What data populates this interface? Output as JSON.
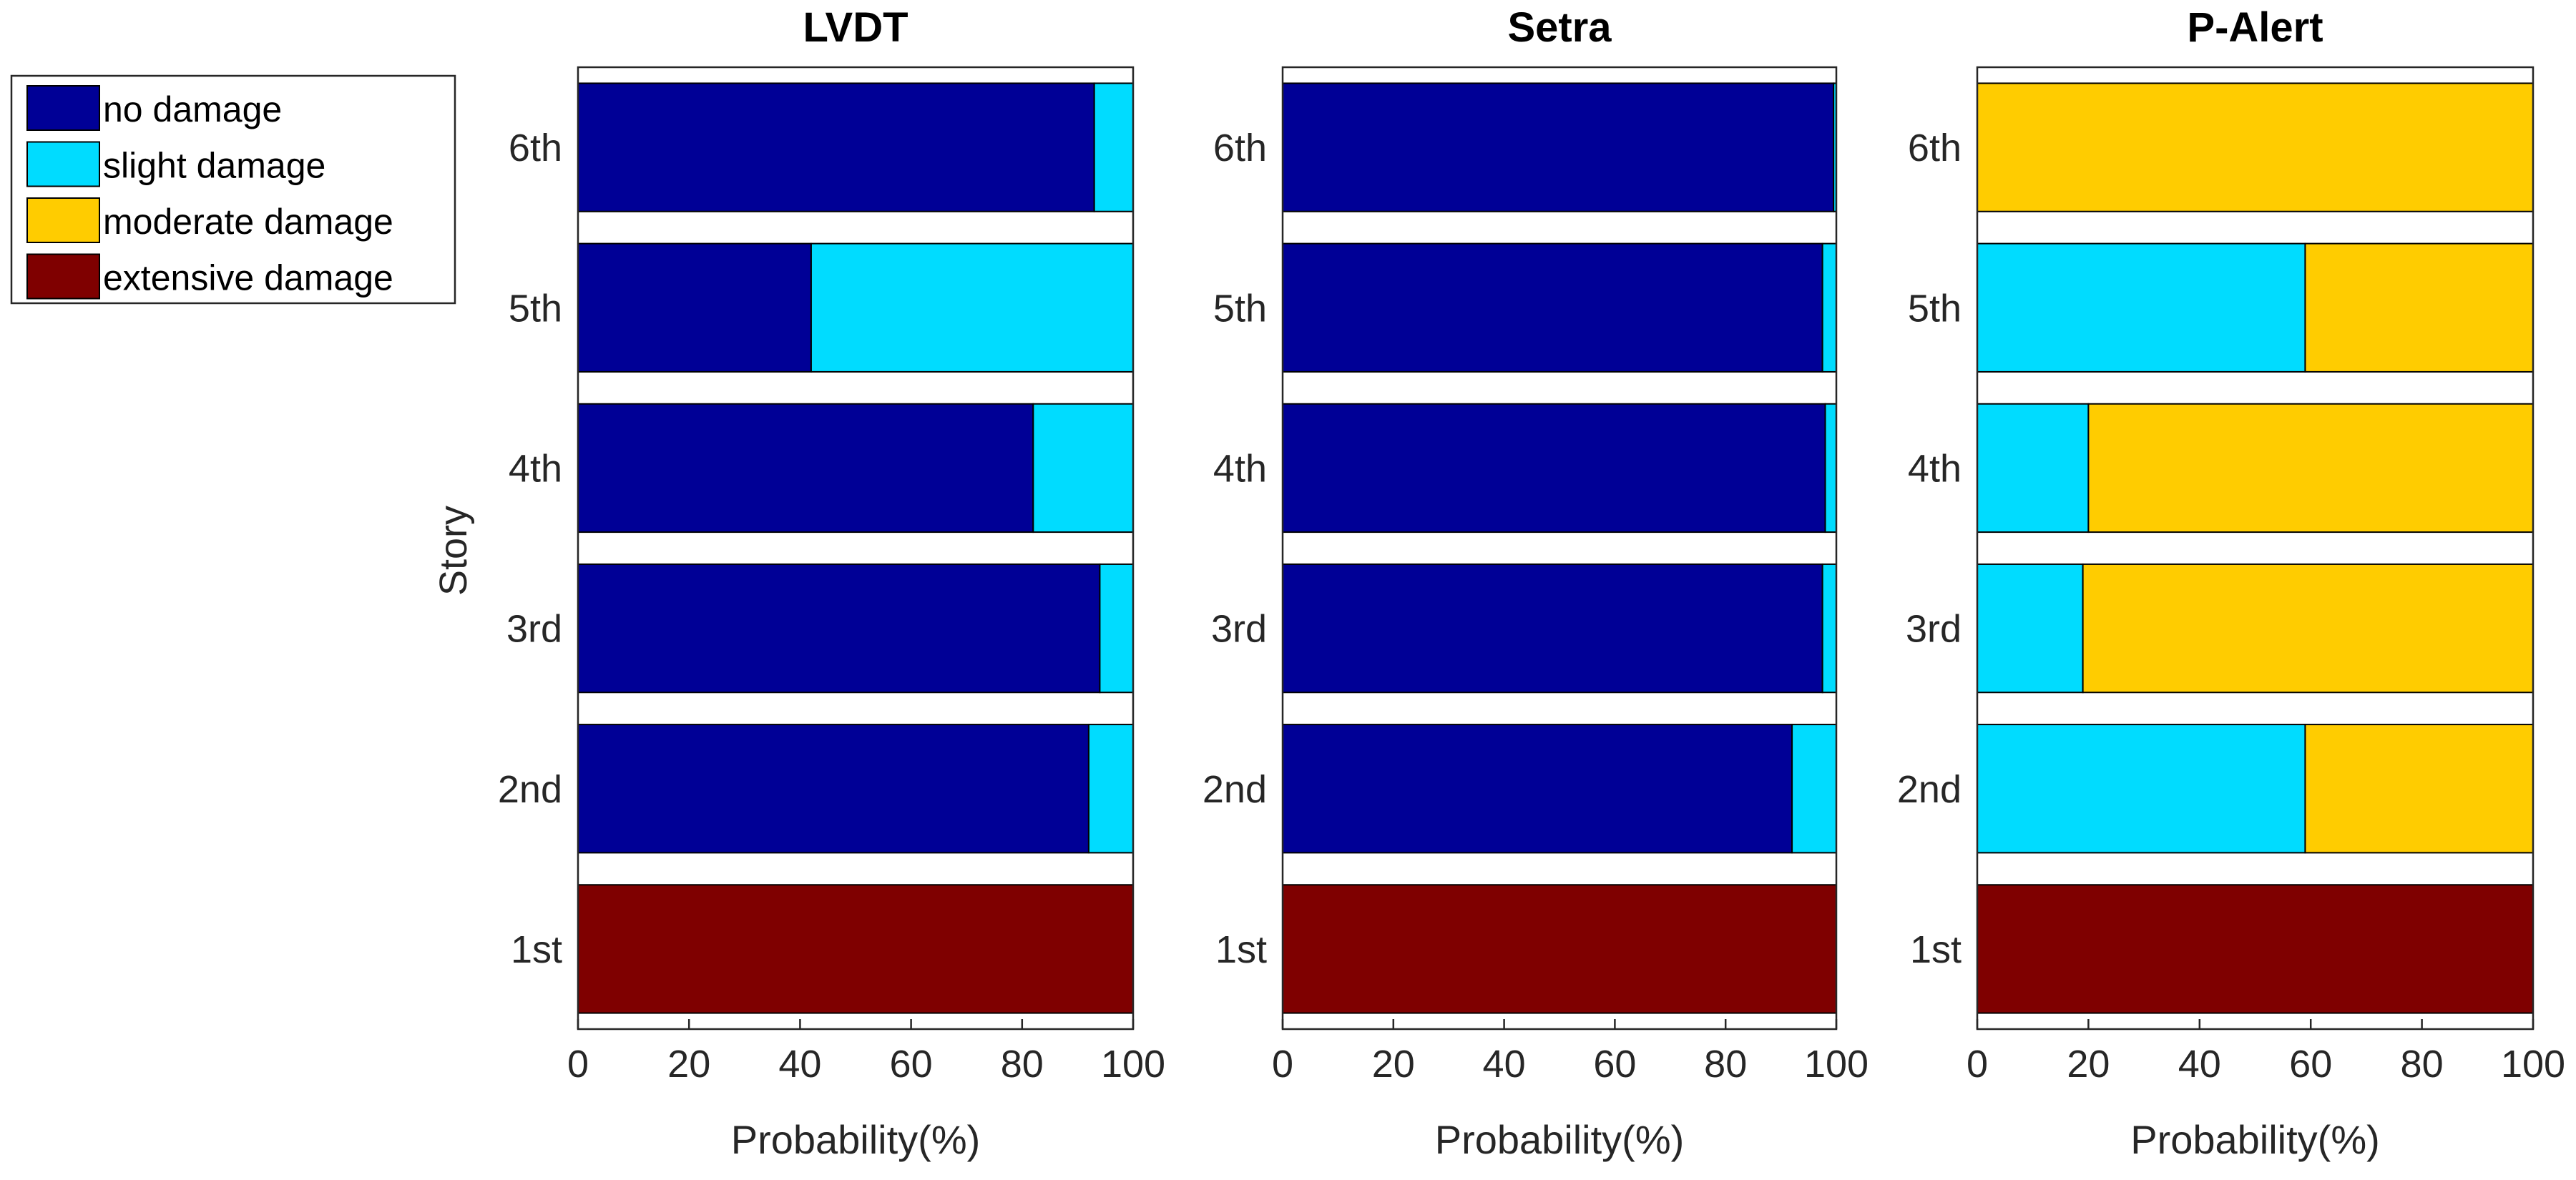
{
  "chart_data": {
    "type": "bar",
    "orientation": "horizontal",
    "stacked": true,
    "categories": [
      "1st",
      "2nd",
      "3rd",
      "4th",
      "5th",
      "6th"
    ],
    "ylabel": "Story",
    "xlim": [
      0,
      100
    ],
    "xticks": [
      0,
      20,
      40,
      60,
      80,
      100
    ],
    "legend": {
      "placement": "upper-left, outside plots",
      "entries": [
        {
          "name": "no damage",
          "color": "#000096"
        },
        {
          "name": "slight damage",
          "color": "#00DCFF"
        },
        {
          "name": "moderate damage",
          "color": "#FFCC00"
        },
        {
          "name": "extensive damage",
          "color": "#7F0000"
        }
      ]
    },
    "panels": [
      {
        "title": "LVDT",
        "xlabel": "Probability(%)",
        "series": [
          {
            "name": "no damage",
            "values": [
              0,
              92,
              94,
              82,
              42,
              93
            ]
          },
          {
            "name": "slight damage",
            "values": [
              0,
              8,
              6,
              18,
              58,
              7
            ]
          },
          {
            "name": "moderate damage",
            "values": [
              0,
              0,
              0,
              0,
              0,
              0
            ]
          },
          {
            "name": "extensive damage",
            "values": [
              100,
              0,
              0,
              0,
              0,
              0
            ]
          }
        ]
      },
      {
        "title": "Setra",
        "xlabel": "Probability(%)",
        "series": [
          {
            "name": "no damage",
            "values": [
              0,
              92,
              97.5,
              98,
              97.5,
              99.5
            ]
          },
          {
            "name": "slight damage",
            "values": [
              0,
              8,
              2.5,
              2,
              2.5,
              0.5
            ]
          },
          {
            "name": "moderate damage",
            "values": [
              0,
              0,
              0,
              0,
              0,
              0
            ]
          },
          {
            "name": "extensive damage",
            "values": [
              100,
              0,
              0,
              0,
              0,
              0
            ]
          }
        ]
      },
      {
        "title": "P-Alert",
        "xlabel": "Probability(%)",
        "series": [
          {
            "name": "no damage",
            "values": [
              0,
              0,
              0,
              0,
              0,
              0
            ]
          },
          {
            "name": "slight damage",
            "values": [
              0,
              59,
              19,
              20,
              59,
              0
            ]
          },
          {
            "name": "moderate damage",
            "values": [
              0,
              41,
              81,
              80,
              41,
              100
            ]
          },
          {
            "name": "extensive damage",
            "values": [
              100,
              0,
              0,
              0,
              0,
              0
            ]
          }
        ]
      }
    ]
  }
}
